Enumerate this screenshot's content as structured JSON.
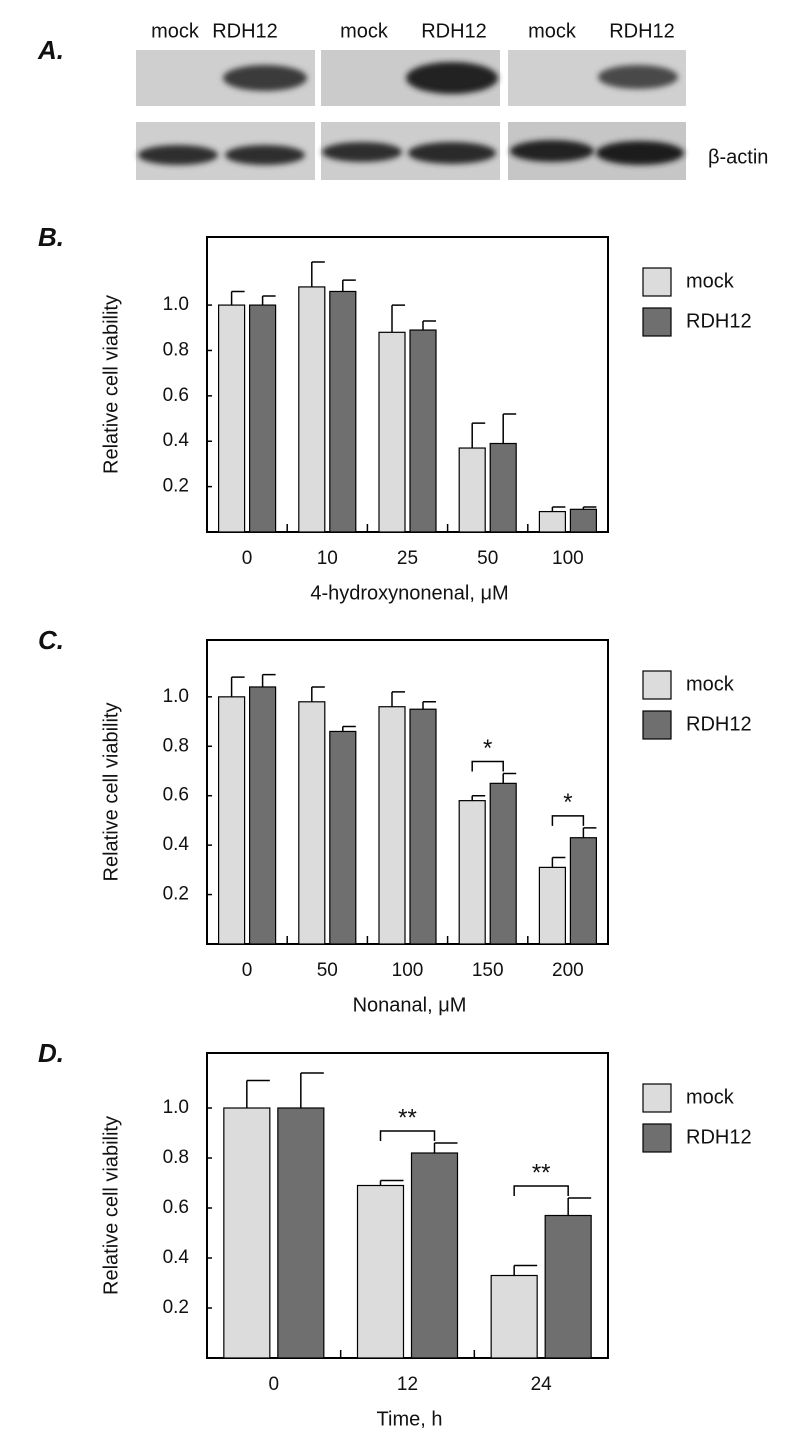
{
  "panel_a": {
    "label": "A.",
    "lanes": [
      "mock",
      "RDH12",
      "mock",
      "RDH12",
      "mock",
      "RDH12"
    ],
    "loading_control": "β-actin"
  },
  "chart_data": [
    {
      "type": "bar",
      "panel_label": "B.",
      "ylabel": "Relative cell viability",
      "xlabel": "4-hydroxynonenal, μM",
      "categories": [
        "0",
        "10",
        "25",
        "50",
        "100"
      ],
      "series": [
        {
          "name": "mock",
          "color": "#dcdcdc",
          "values": [
            1.0,
            1.08,
            0.88,
            0.37,
            0.09
          ],
          "errors": [
            0.06,
            0.11,
            0.12,
            0.11,
            0.02
          ]
        },
        {
          "name": "RDH12",
          "color": "#6f6f6f",
          "values": [
            1.0,
            1.06,
            0.89,
            0.39,
            0.1
          ],
          "errors": [
            0.04,
            0.05,
            0.04,
            0.13,
            0.01
          ]
        }
      ],
      "significance": [
        null,
        null,
        null,
        null,
        null
      ],
      "ylim": [
        0,
        1.3
      ],
      "yticks": [
        0.2,
        0.4,
        0.6,
        0.8,
        {
          "value": 1,
          "label": "1.0"
        }
      ],
      "legend": "right"
    },
    {
      "type": "bar",
      "panel_label": "C.",
      "ylabel": "Relative cell viability",
      "xlabel": "Nonanal, μM",
      "categories": [
        "0",
        "50",
        "100",
        "150",
        "200"
      ],
      "series": [
        {
          "name": "mock",
          "color": "#dcdcdc",
          "values": [
            1.0,
            0.98,
            0.96,
            0.58,
            0.31
          ],
          "errors": [
            0.08,
            0.06,
            0.06,
            0.02,
            0.04
          ]
        },
        {
          "name": "RDH12",
          "color": "#6f6f6f",
          "values": [
            1.04,
            0.86,
            0.95,
            0.65,
            0.43
          ],
          "errors": [
            0.05,
            0.02,
            0.03,
            0.04,
            0.04
          ]
        }
      ],
      "significance": [
        null,
        null,
        null,
        "*",
        "*"
      ],
      "ylim": [
        0,
        1.23
      ],
      "yticks": [
        0.2,
        0.4,
        0.6,
        0.8,
        {
          "value": 1,
          "label": "1.0"
        }
      ],
      "legend": "right"
    },
    {
      "type": "bar",
      "panel_label": "D.",
      "ylabel": "Relative cell viability",
      "xlabel": "Time, h",
      "categories": [
        "0",
        "12",
        "24"
      ],
      "series": [
        {
          "name": "mock",
          "color": "#dcdcdc",
          "values": [
            1.0,
            0.69,
            0.33
          ],
          "errors": [
            0.11,
            0.02,
            0.04
          ]
        },
        {
          "name": "RDH12",
          "color": "#6f6f6f",
          "values": [
            1.0,
            0.82,
            0.57
          ],
          "errors": [
            0.14,
            0.04,
            0.07
          ]
        }
      ],
      "significance": [
        null,
        "**",
        "**"
      ],
      "ylim": [
        0,
        1.22
      ],
      "yticks": [
        0.2,
        0.4,
        0.6,
        0.8,
        {
          "value": 1,
          "label": "1.0"
        }
      ],
      "legend": "right"
    }
  ]
}
